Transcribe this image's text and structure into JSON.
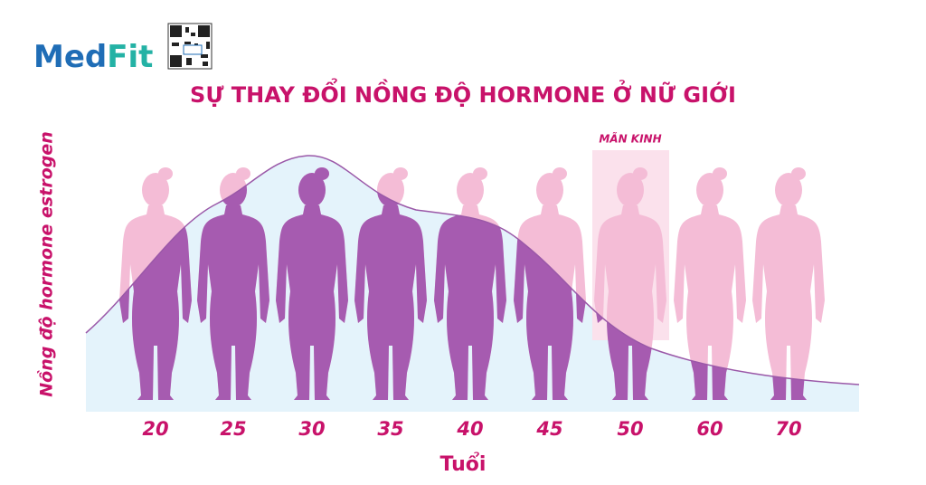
{
  "logo": {
    "text_med": "Med",
    "text_fit": "Fit"
  },
  "title": "SỰ THAY ĐỔI NỒNG ĐỘ HORMONE Ở NỮ GIỚI",
  "y_axis_label": "Nồng độ hormone estrogen",
  "annotation": "MÃN KINH",
  "x_axis_label": "Tuổi",
  "ages": [
    "20",
    "25",
    "30",
    "35",
    "40",
    "45",
    "50",
    "60",
    "70"
  ]
}
